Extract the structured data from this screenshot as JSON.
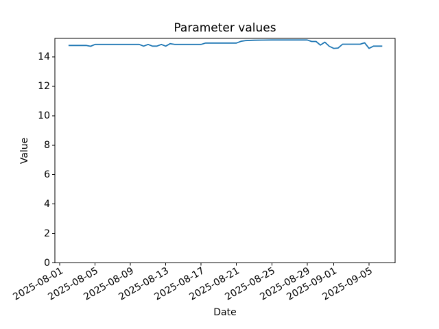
{
  "chart_data": {
    "type": "line",
    "title": "Parameter values",
    "xlabel": "Date",
    "ylabel": "Value",
    "grid": false,
    "ylim": [
      0,
      15.26
    ],
    "y_ticks": [
      0,
      2,
      4,
      6,
      8,
      10,
      12,
      14
    ],
    "x_tick_labels": [
      "2025-08-01",
      "2025-08-05",
      "2025-08-09",
      "2025-08-13",
      "2025-08-17",
      "2025-08-21",
      "2025-08-25",
      "2025-08-29",
      "2025-09-01",
      "2025-09-05"
    ],
    "line_color": "#1f77b4",
    "axis_color": "#000000",
    "series": [
      {
        "color": "#1f77b4",
        "points": [
          [
            "2025-08-02",
            14.78
          ],
          [
            "2025-08-03",
            14.78
          ],
          [
            "2025-08-04",
            14.78
          ],
          [
            "2025-08-04T12:00",
            14.72
          ],
          [
            "2025-08-05",
            14.85
          ],
          [
            "2025-08-06",
            14.85
          ],
          [
            "2025-08-07",
            14.85
          ],
          [
            "2025-08-08",
            14.85
          ],
          [
            "2025-08-09",
            14.85
          ],
          [
            "2025-08-10",
            14.85
          ],
          [
            "2025-08-10T12:00",
            14.73
          ],
          [
            "2025-08-11",
            14.85
          ],
          [
            "2025-08-11T12:00",
            14.73
          ],
          [
            "2025-08-12",
            14.73
          ],
          [
            "2025-08-12T12:00",
            14.85
          ],
          [
            "2025-08-13",
            14.73
          ],
          [
            "2025-08-13T12:00",
            14.9
          ],
          [
            "2025-08-14",
            14.85
          ],
          [
            "2025-08-15",
            14.85
          ],
          [
            "2025-08-16",
            14.85
          ],
          [
            "2025-08-17",
            14.85
          ],
          [
            "2025-08-17T12:00",
            14.94
          ],
          [
            "2025-08-18",
            14.94
          ],
          [
            "2025-08-19",
            14.94
          ],
          [
            "2025-08-20",
            14.94
          ],
          [
            "2025-08-21",
            14.94
          ],
          [
            "2025-08-21T12:00",
            15.06
          ],
          [
            "2025-08-22",
            15.11
          ],
          [
            "2025-08-23",
            15.13
          ],
          [
            "2025-08-24",
            15.14
          ],
          [
            "2025-08-25",
            15.15
          ],
          [
            "2025-08-26",
            15.15
          ],
          [
            "2025-08-27",
            15.15
          ],
          [
            "2025-08-28",
            15.15
          ],
          [
            "2025-08-29",
            15.15
          ],
          [
            "2025-08-29T12:00",
            15.05
          ],
          [
            "2025-08-30",
            15.05
          ],
          [
            "2025-08-30T12:00",
            14.8
          ],
          [
            "2025-08-31",
            15.0
          ],
          [
            "2025-08-31T12:00",
            14.72
          ],
          [
            "2025-09-01",
            14.58
          ],
          [
            "2025-09-01T12:00",
            14.6
          ],
          [
            "2025-09-02",
            14.86
          ],
          [
            "2025-09-03",
            14.86
          ],
          [
            "2025-09-04",
            14.86
          ],
          [
            "2025-09-04T12:00",
            14.96
          ],
          [
            "2025-09-05",
            14.58
          ],
          [
            "2025-09-05T12:00",
            14.73
          ],
          [
            "2025-09-06",
            14.73
          ],
          [
            "2025-09-06T12:00",
            14.73
          ]
        ]
      }
    ]
  }
}
